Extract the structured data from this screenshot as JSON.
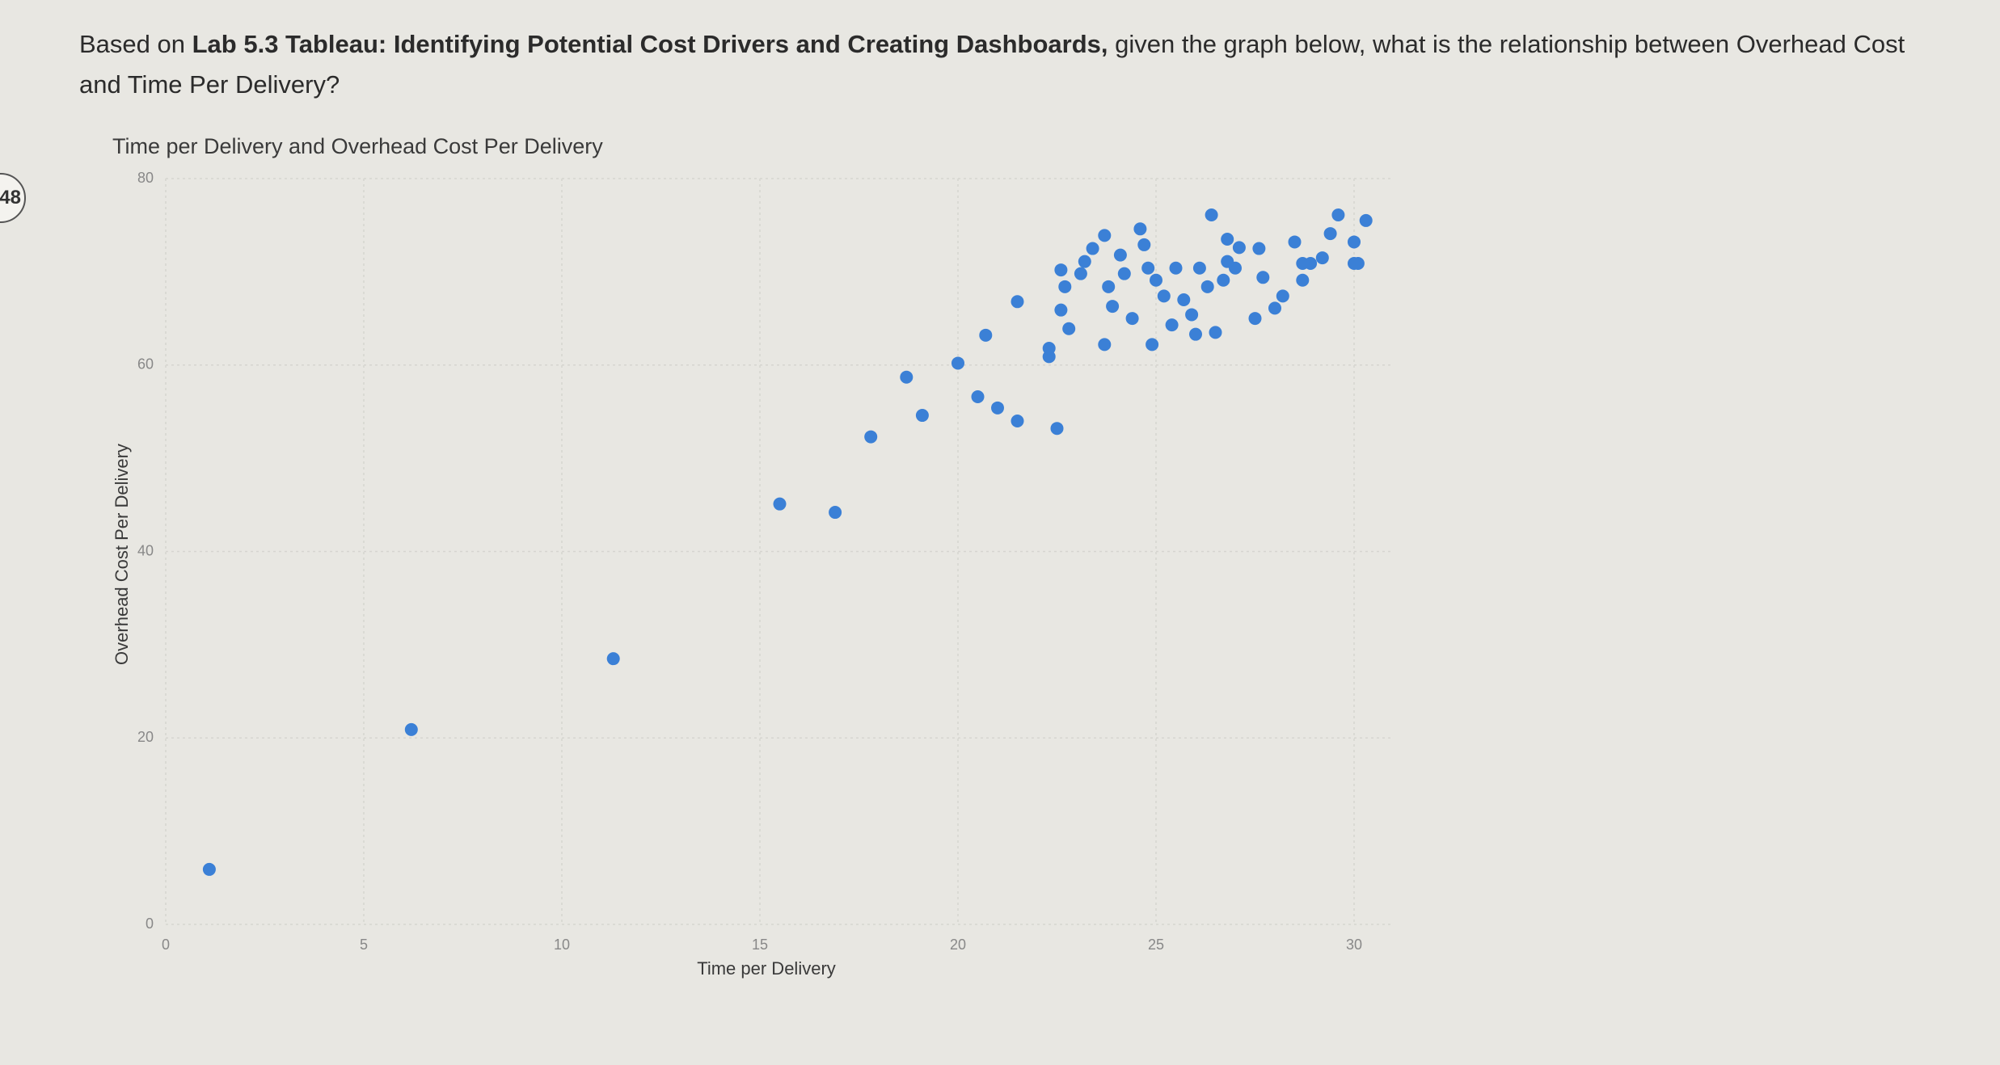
{
  "question": {
    "prefix": "Based on",
    "bold": "Lab 5.3 Tableau: Identifying Potential Cost Drivers and Creating Dashboards,",
    "suffix": "given the graph below, what is the relationship between Overhead Cost and Time Per Delivery?"
  },
  "badge": "48",
  "chart_data": {
    "type": "scatter",
    "title": "Time per Delivery and Overhead Cost Per Delivery",
    "x_label": "Time per Delivery",
    "y_label": "Overhead Cost Per Delivery",
    "color": "#3b80d6",
    "grid": true,
    "xlim": [
      0,
      31
    ],
    "xticks": [
      0,
      5,
      10,
      15,
      20,
      25,
      30
    ],
    "ylim": [
      0,
      80
    ],
    "yticks": [
      0,
      20,
      40,
      60,
      80
    ],
    "x": [
      1.1,
      6.2,
      11.3,
      15.5,
      16.9,
      17.8,
      18.7,
      19.1,
      20.0,
      20.5,
      20.7,
      21.0,
      21.5,
      21.5,
      22.5,
      22.3,
      22.3,
      26.4,
      29.6,
      30.3,
      30.0,
      29.4,
      30.1,
      29.2,
      28.5,
      28.9,
      28.7,
      28.2,
      28.0,
      27.5,
      27.6,
      27.1,
      26.8,
      27.0,
      26.7,
      26.3,
      26.5,
      26.0,
      25.9,
      25.7,
      25.4,
      24.9,
      25.2,
      25.0,
      24.8,
      24.6,
      24.7,
      24.2,
      24.4,
      23.9,
      23.7,
      23.7,
      23.4,
      23.2,
      22.8,
      22.7,
      22.6,
      22.6,
      23.1,
      23.8,
      24.1,
      25.5,
      26.1,
      26.8,
      27.7,
      28.7,
      30.0
    ],
    "values": [
      5.9,
      20.9,
      28.5,
      45.1,
      44.2,
      52.3,
      58.7,
      54.6,
      60.2,
      56.6,
      63.2,
      55.4,
      54.0,
      66.8,
      53.2,
      60.9,
      61.8,
      76.1,
      76.1,
      75.5,
      73.2,
      74.1,
      70.9,
      71.5,
      73.2,
      70.9,
      69.1,
      67.4,
      66.1,
      65.0,
      72.5,
      72.6,
      73.5,
      70.4,
      69.1,
      68.4,
      63.5,
      63.3,
      65.4,
      67.0,
      64.3,
      62.2,
      67.4,
      69.1,
      70.4,
      74.6,
      72.9,
      69.8,
      65.0,
      66.3,
      62.2,
      73.9,
      72.5,
      71.1,
      63.9,
      68.4,
      65.9,
      70.2,
      69.8,
      68.4,
      71.8,
      70.4,
      70.4,
      71.1,
      69.4,
      70.9,
      70.9
    ]
  }
}
